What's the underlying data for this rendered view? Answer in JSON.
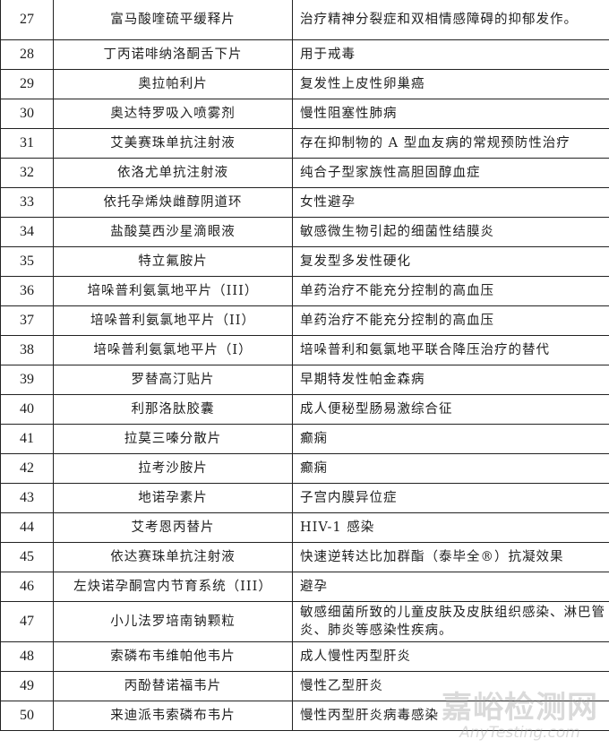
{
  "table": {
    "rows": [
      {
        "no": "27",
        "name": "富马酸喹硫平缓释片",
        "indication": "治疗精神分裂症和双相情感障碍的抑郁发作。"
      },
      {
        "no": "28",
        "name": "丁丙诺啡纳洛酮舌下片",
        "indication": "用于戒毒"
      },
      {
        "no": "29",
        "name": "奥拉帕利片",
        "indication": "复发性上皮性卵巢癌"
      },
      {
        "no": "30",
        "name": "奥达特罗吸入喷雾剂",
        "indication": "慢性阻塞性肺病"
      },
      {
        "no": "31",
        "name": "艾美赛珠单抗注射液",
        "indication": "存在抑制物的 A 型血友病的常规预防性治疗"
      },
      {
        "no": "32",
        "name": "依洛尤单抗注射液",
        "indication": "纯合子型家族性高胆固醇血症"
      },
      {
        "no": "33",
        "name": "依托孕烯炔雌醇阴道环",
        "indication": "女性避孕"
      },
      {
        "no": "34",
        "name": "盐酸莫西沙星滴眼液",
        "indication": "敏感微生物引起的细菌性结膜炎"
      },
      {
        "no": "35",
        "name": "特立氟胺片",
        "indication": "复发型多发性硬化"
      },
      {
        "no": "36",
        "name": "培哚普利氨氯地平片（III）",
        "indication": "单药治疗不能充分控制的高血压"
      },
      {
        "no": "37",
        "name": "培哚普利氨氯地平片（II）",
        "indication": "单药治疗不能充分控制的高血压"
      },
      {
        "no": "38",
        "name": "培哚普利氨氯地平片（I）",
        "indication": "培哚普利和氨氯地平联合降压治疗的替代"
      },
      {
        "no": "39",
        "name": "罗替高汀贴片",
        "indication": "早期特发性帕金森病"
      },
      {
        "no": "40",
        "name": "利那洛肽胶囊",
        "indication": "成人便秘型肠易激综合征"
      },
      {
        "no": "41",
        "name": "拉莫三嗪分散片",
        "indication": "癫痫"
      },
      {
        "no": "42",
        "name": "拉考沙胺片",
        "indication": "癫痫"
      },
      {
        "no": "43",
        "name": "地诺孕素片",
        "indication": "子宫内膜异位症"
      },
      {
        "no": "44",
        "name": "艾考恩丙替片",
        "indication": "HIV-1 感染"
      },
      {
        "no": "45",
        "name": "依达赛珠单抗注射液",
        "indication": "快速逆转达比加群酯（泰毕全®）抗凝效果"
      },
      {
        "no": "46",
        "name": "左炔诺孕酮宫内节育系统（III）",
        "indication": "避孕"
      },
      {
        "no": "47",
        "name": "小儿法罗培南钠颗粒",
        "indication": "敏感细菌所致的儿童皮肤及皮肤组织感染、淋巴管炎、肺炎等感染性疾病。"
      },
      {
        "no": "48",
        "name": "索磷布韦维帕他韦片",
        "indication": "成人慢性丙型肝炎"
      },
      {
        "no": "49",
        "name": "丙酚替诺福韦片",
        "indication": "慢性乙型肝炎"
      },
      {
        "no": "50",
        "name": "来迪派韦索磷布韦片",
        "indication": "慢性丙型肝炎病毒感染"
      }
    ]
  },
  "watermark": {
    "cn": "嘉峪检测网",
    "en": "AnyTesting.com"
  }
}
